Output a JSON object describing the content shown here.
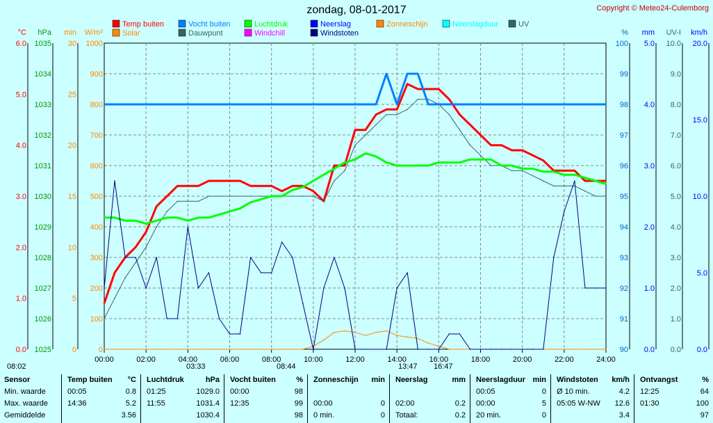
{
  "page": {
    "title": "zondag, 08-01-2017",
    "copyright": "Copyright © Meteo24-Culemborg"
  },
  "colors": {
    "background": "#ccffff",
    "temp": "#ff0000",
    "humidity": "#0080ff",
    "pressure": "#00ff00",
    "precip": "#0000ff",
    "sunshine": "#ff8800",
    "precip_duration": "#00ffff",
    "uv": "#336666",
    "solar": "#ff8800",
    "dewpoint": "#336666",
    "windchill": "#ff00ff",
    "gust": "#000080"
  },
  "chart_data": {
    "type": "line",
    "title": "zondag, 08-01-2017",
    "x": [
      "00:00",
      "00:30",
      "01:00",
      "01:30",
      "02:00",
      "02:30",
      "03:00",
      "03:30",
      "04:00",
      "04:30",
      "05:00",
      "05:30",
      "06:00",
      "06:30",
      "07:00",
      "07:30",
      "08:00",
      "08:30",
      "09:00",
      "09:30",
      "10:00",
      "10:30",
      "11:00",
      "11:30",
      "12:00",
      "12:30",
      "13:00",
      "13:30",
      "14:00",
      "14:30",
      "15:00",
      "15:30",
      "16:00",
      "16:30",
      "17:00",
      "17:30",
      "18:00",
      "18:30",
      "19:00",
      "19:30",
      "20:00",
      "20:30",
      "21:00",
      "21:30",
      "22:00",
      "22:30",
      "23:00",
      "23:30",
      "24:00"
    ],
    "x_ticks": [
      "00:00",
      "02:00",
      "04:00",
      "06:00",
      "08:00",
      "10:00",
      "12:00",
      "14:00",
      "16:00",
      "18:00",
      "20:00",
      "22:00",
      "24:00"
    ],
    "legend": [
      {
        "label": "Temp buiten",
        "color": "#ff0000"
      },
      {
        "label": "Vocht buiten",
        "color": "#0080ff"
      },
      {
        "label": "Luchtdruk",
        "color": "#00ff00"
      },
      {
        "label": "Neerslag",
        "color": "#0000ff"
      },
      {
        "label": "Zonneschijn",
        "color": "#ff8800"
      },
      {
        "label": "Neerslagduur",
        "color": "#00ffff"
      },
      {
        "label": "UV",
        "color": "#336666"
      },
      {
        "label": "Solar",
        "color": "#ff8800"
      },
      {
        "label": "Dauwpunt",
        "color": "#336666"
      },
      {
        "label": "Windchill",
        "color": "#ff00ff"
      },
      {
        "label": "Windstoten",
        "color": "#000080"
      }
    ],
    "axes": {
      "temp": {
        "unit": "°C",
        "range": [
          0,
          6
        ],
        "ticks": [
          "0.0",
          "1.0",
          "2.0",
          "3.0",
          "4.0",
          "5.0",
          "6.0"
        ]
      },
      "pressure": {
        "unit": "hPa",
        "range": [
          1025,
          1035
        ],
        "ticks": [
          "1025",
          "1026",
          "1027",
          "1028",
          "1029",
          "1030",
          "1031",
          "1032",
          "1033",
          "1034",
          "1035"
        ]
      },
      "minutes": {
        "unit": "min",
        "range": [
          0,
          30
        ],
        "ticks": [
          "0",
          "5",
          "10",
          "15",
          "20",
          "25",
          "30"
        ]
      },
      "solar": {
        "unit": "W/m²",
        "range": [
          0,
          1000
        ],
        "ticks": [
          "0",
          "100",
          "200",
          "300",
          "400",
          "500",
          "600",
          "700",
          "800",
          "900",
          "1000"
        ]
      },
      "humidity": {
        "unit": "%",
        "range": [
          90,
          100
        ],
        "ticks": [
          "90",
          "91",
          "92",
          "93",
          "94",
          "95",
          "96",
          "97",
          "98",
          "99",
          "100"
        ]
      },
      "rain": {
        "unit": "mm",
        "range": [
          0,
          5
        ],
        "ticks": [
          "0.0",
          "1.0",
          "2.0",
          "3.0",
          "4.0",
          "5.0"
        ]
      },
      "uv": {
        "unit": "UV-I",
        "range": [
          0,
          10
        ],
        "ticks": [
          "0.0",
          "1.0",
          "2.0",
          "3.0",
          "4.0",
          "5.0",
          "6.0",
          "7.0",
          "8.0",
          "9.0",
          "10.0"
        ]
      },
      "wind": {
        "unit": "km/h",
        "range": [
          0,
          20
        ],
        "ticks": [
          "0.0",
          "5.0",
          "10.0",
          "15.0",
          "20.0"
        ]
      }
    },
    "series": [
      {
        "name": "Temp buiten",
        "axis": "temp",
        "values": [
          0.9,
          1.5,
          1.8,
          2.0,
          2.3,
          2.8,
          3.0,
          3.2,
          3.2,
          3.2,
          3.3,
          3.3,
          3.3,
          3.3,
          3.2,
          3.2,
          3.2,
          3.1,
          3.2,
          3.2,
          3.1,
          2.9,
          3.6,
          3.6,
          4.3,
          4.3,
          4.6,
          4.7,
          4.7,
          5.2,
          5.1,
          5.1,
          5.1,
          4.9,
          4.6,
          4.4,
          4.2,
          4.0,
          4.0,
          3.9,
          3.9,
          3.8,
          3.7,
          3.5,
          3.5,
          3.5,
          3.3,
          3.3,
          3.3
        ]
      },
      {
        "name": "Dauwpunt",
        "axis": "temp",
        "values": [
          0.6,
          1.0,
          1.4,
          1.7,
          2.0,
          2.4,
          2.7,
          2.9,
          2.9,
          2.9,
          3.0,
          3.0,
          3.0,
          3.0,
          3.0,
          3.0,
          3.0,
          3.0,
          3.0,
          3.0,
          3.0,
          2.9,
          3.3,
          3.5,
          4.0,
          4.2,
          4.4,
          4.6,
          4.6,
          4.7,
          4.9,
          4.9,
          4.8,
          4.6,
          4.3,
          4.0,
          3.8,
          3.6,
          3.6,
          3.5,
          3.5,
          3.4,
          3.3,
          3.2,
          3.2,
          3.2,
          3.1,
          3.0,
          3.0
        ]
      },
      {
        "name": "Luchtdruk",
        "axis": "pressure",
        "values": [
          1029.3,
          1029.3,
          1029.2,
          1029.2,
          1029.1,
          1029.2,
          1029.3,
          1029.3,
          1029.2,
          1029.3,
          1029.3,
          1029.4,
          1029.5,
          1029.6,
          1029.8,
          1029.9,
          1030.0,
          1030.0,
          1030.2,
          1030.3,
          1030.5,
          1030.7,
          1030.9,
          1031.1,
          1031.2,
          1031.4,
          1031.3,
          1031.1,
          1031.0,
          1031.0,
          1031.0,
          1031.0,
          1031.1,
          1031.1,
          1031.1,
          1031.2,
          1031.2,
          1031.2,
          1031.0,
          1031.0,
          1030.9,
          1030.9,
          1030.8,
          1030.8,
          1030.7,
          1030.7,
          1030.6,
          1030.5,
          1030.4
        ]
      },
      {
        "name": "Vocht buiten",
        "axis": "humidity",
        "values": [
          98,
          98,
          98,
          98,
          98,
          98,
          98,
          98,
          98,
          98,
          98,
          98,
          98,
          98,
          98,
          98,
          98,
          98,
          98,
          98,
          98,
          98,
          98,
          98,
          98,
          98,
          98,
          99,
          98,
          99,
          99,
          98,
          98,
          98,
          98,
          98,
          98,
          98,
          98,
          98,
          98,
          98,
          98,
          98,
          98,
          98,
          98,
          98,
          98
        ]
      },
      {
        "name": "Solar",
        "axis": "solar",
        "values": [
          0,
          0,
          0,
          0,
          0,
          0,
          0,
          0,
          0,
          0,
          0,
          0,
          0,
          0,
          0,
          0,
          0,
          0,
          0,
          0,
          10,
          30,
          55,
          60,
          55,
          45,
          55,
          60,
          45,
          40,
          35,
          20,
          10,
          0,
          0,
          0,
          0,
          0,
          0,
          0,
          0,
          0,
          0,
          0,
          0,
          0,
          0,
          0,
          0
        ]
      },
      {
        "name": "Windstoten",
        "axis": "wind",
        "values": [
          4,
          11,
          6,
          6,
          4,
          6,
          2,
          2,
          8,
          4,
          5,
          2,
          1,
          1,
          6,
          5,
          5,
          7,
          6,
          3,
          0,
          4,
          6,
          4,
          0,
          0,
          0,
          0,
          4,
          5,
          0,
          0,
          0,
          1,
          1,
          0,
          0,
          0,
          0,
          0,
          0,
          0,
          0,
          6,
          9,
          11,
          4,
          4,
          4
        ]
      }
    ],
    "markers": [
      {
        "label": "08:02"
      },
      {
        "label": "03:33"
      },
      {
        "label": "08:44"
      },
      {
        "label": "13:47"
      },
      {
        "label": "16:47"
      }
    ]
  },
  "summary": {
    "columns": [
      {
        "header": [
          "Sensor"
        ],
        "rows": [
          [
            "Min. waarde"
          ],
          [
            "Max. waarde"
          ],
          [
            "Gemiddelde"
          ]
        ]
      },
      {
        "header": [
          "Temp buiten",
          "°C"
        ],
        "rows": [
          [
            "00:05",
            "0.8"
          ],
          [
            "14:36",
            "5.2"
          ],
          [
            "",
            "3.56"
          ]
        ]
      },
      {
        "header": [
          "Luchtdruk",
          "hPa"
        ],
        "rows": [
          [
            "01:25",
            "1029.0"
          ],
          [
            "11:55",
            "1031.4"
          ],
          [
            "",
            "1030.4"
          ]
        ]
      },
      {
        "header": [
          "Vocht buiten",
          "%"
        ],
        "rows": [
          [
            "00:00",
            "98"
          ],
          [
            "12:35",
            "99"
          ],
          [
            "",
            "98"
          ]
        ]
      },
      {
        "header": [
          "Zonneschijn",
          "min"
        ],
        "rows": [
          [
            "",
            ""
          ],
          [
            "00:00",
            "0"
          ],
          [
            "0 min.",
            "0"
          ]
        ]
      },
      {
        "header": [
          "Neerslag",
          "mm"
        ],
        "rows": [
          [
            "",
            ""
          ],
          [
            "02:00",
            "0.2"
          ],
          [
            "Totaal:",
            "0.2"
          ]
        ]
      },
      {
        "header": [
          "Neerslagduur",
          "min"
        ],
        "rows": [
          [
            "00:05",
            "0"
          ],
          [
            "00:00",
            "5"
          ],
          [
            "20 min.",
            "0"
          ]
        ]
      },
      {
        "header": [
          "Windstoten",
          "km/h"
        ],
        "rows": [
          [
            "Ø 10 min.",
            "4.2"
          ],
          [
            "05:05  W-NW",
            "12.6"
          ],
          [
            "",
            "3.4"
          ]
        ]
      },
      {
        "header": [
          "Ontvangst",
          "%"
        ],
        "rows": [
          [
            "12:25",
            "64"
          ],
          [
            "01:30",
            "100"
          ],
          [
            "",
            "97"
          ]
        ]
      }
    ]
  }
}
